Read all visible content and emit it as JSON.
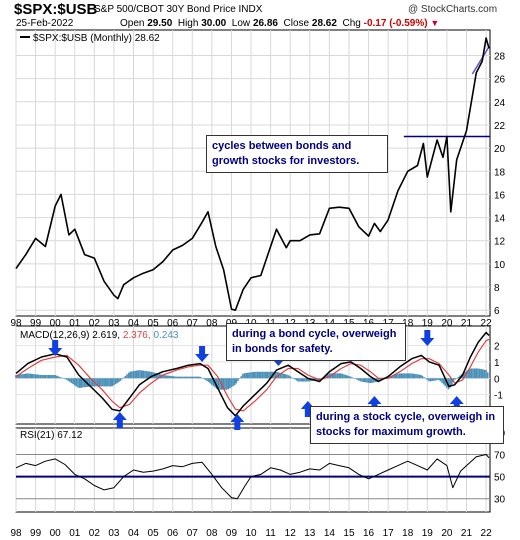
{
  "header": {
    "symbol": "$SPX:$USB",
    "description": "S&P 500/CBOT 30Y Bond Price INDX",
    "brand": "@ StockCharts.com",
    "date": "25-Feb-2022",
    "open_label": "Open",
    "open": "29.50",
    "high_label": "High",
    "high": "30.00",
    "low_label": "Low",
    "low": "26.86",
    "close_label": "Close",
    "close": "28.62",
    "chg_label": "Chg",
    "chg": "-0.17 (-0.59%)"
  },
  "annotations": {
    "top": "cycles between bonds and growth stocks for investors.",
    "bond_cycle": "during a bond cycle, overweigh in bonds for safety.",
    "stock_cycle": "during a stock cycle, overweigh in stocks for maximum growth."
  },
  "colors": {
    "price": "#000000",
    "macd": "#000000",
    "signal": "#e04040",
    "histogram": "#4a90b8",
    "arrow": "#1040e0",
    "annotation_text": "#000080",
    "level_line": "#000080",
    "trendline": "#6050d0"
  },
  "chart_data": [
    {
      "type": "line",
      "title": "$SPX:$USB (Monthly) 28.62",
      "x": [
        1998.0,
        1998.5,
        1999.0,
        1999.5,
        2000.0,
        2000.3,
        2000.7,
        2001.0,
        2001.5,
        2002.0,
        2002.5,
        2003.0,
        2003.2,
        2003.5,
        2004.0,
        2004.5,
        2005.0,
        2005.5,
        2006.0,
        2006.5,
        2007.0,
        2007.5,
        2007.8,
        2008.2,
        2008.6,
        2009.0,
        2009.2,
        2009.6,
        2010.0,
        2010.5,
        2011.0,
        2011.3,
        2011.8,
        2012.0,
        2012.5,
        2013.0,
        2013.5,
        2014.0,
        2014.5,
        2015.0,
        2015.5,
        2016.0,
        2016.3,
        2016.6,
        2017.0,
        2017.5,
        2018.0,
        2018.5,
        2018.8,
        2019.0,
        2019.5,
        2019.8,
        2020.0,
        2020.2,
        2020.5,
        2020.8,
        2021.0,
        2021.5,
        2021.8,
        2022.0,
        2022.15
      ],
      "y": [
        9.6,
        10.8,
        12.2,
        11.5,
        15.0,
        16.0,
        12.5,
        13.0,
        10.8,
        10.5,
        8.5,
        7.3,
        7.0,
        8.2,
        8.8,
        9.2,
        9.5,
        10.2,
        11.2,
        11.6,
        12.2,
        13.6,
        14.5,
        11.5,
        9.5,
        6.1,
        6.0,
        7.8,
        8.8,
        9.0,
        11.5,
        13.0,
        11.4,
        12.0,
        12.0,
        12.5,
        12.6,
        14.8,
        14.9,
        14.8,
        13.2,
        12.4,
        13.5,
        12.8,
        13.8,
        16.3,
        18.0,
        18.5,
        20.4,
        17.5,
        20.7,
        19.2,
        21.0,
        14.5,
        19.0,
        20.5,
        21.5,
        26.5,
        27.5,
        29.5,
        28.62
      ],
      "y_ticks": [
        6,
        8,
        10,
        12,
        14,
        16,
        18,
        20,
        22,
        24,
        26,
        28
      ],
      "ylim": [
        5.5,
        30.2
      ],
      "xlim": [
        1998.0,
        2022.2
      ],
      "horizontal_level": 21.0,
      "horizontal_level_from": 2017.8,
      "trendline": {
        "x": [
          2021.3,
          2022.2
        ],
        "y": [
          26.4,
          28.9
        ]
      }
    },
    {
      "type": "line",
      "title": "MACD(12,26,9)",
      "macd_value": "2.619",
      "signal_value": "2.376",
      "hist_value": "0.243",
      "series": [
        {
          "name": "MACD",
          "x": [
            1998.0,
            1998.6,
            1999.3,
            2000.0,
            2000.6,
            2001.2,
            2001.8,
            2002.4,
            2002.9,
            2003.3,
            2003.8,
            2004.3,
            2004.9,
            2005.5,
            2006.2,
            2006.8,
            2007.4,
            2007.8,
            2008.3,
            2008.8,
            2009.2,
            2009.6,
            2010.2,
            2010.8,
            2011.3,
            2011.9,
            2012.4,
            2012.9,
            2013.5,
            2014.0,
            2014.6,
            2015.1,
            2015.6,
            2016.1,
            2016.5,
            2017.0,
            2017.6,
            2018.2,
            2018.7,
            2019.1,
            2019.6,
            2020.1,
            2020.4,
            2020.8,
            2021.2,
            2021.6,
            2022.0,
            2022.15
          ],
          "y": [
            0.3,
            0.9,
            1.3,
            1.5,
            1.3,
            0.2,
            -0.5,
            -1.2,
            -1.9,
            -2.0,
            -1.2,
            -0.4,
            0.1,
            0.4,
            0.6,
            0.8,
            0.9,
            0.6,
            -0.6,
            -1.8,
            -2.3,
            -1.7,
            -1.0,
            -0.3,
            0.5,
            0.8,
            0.4,
            0.0,
            -0.2,
            0.4,
            0.9,
            1.0,
            0.6,
            0.1,
            -0.2,
            0.1,
            0.7,
            1.2,
            1.4,
            1.0,
            0.8,
            -0.5,
            -0.4,
            0.2,
            1.3,
            2.2,
            2.8,
            2.62
          ]
        },
        {
          "name": "Signal",
          "x": [
            1998.0,
            1998.6,
            1999.3,
            2000.0,
            2000.6,
            2001.2,
            2001.8,
            2002.4,
            2002.9,
            2003.3,
            2003.8,
            2004.3,
            2004.9,
            2005.5,
            2006.2,
            2006.8,
            2007.4,
            2007.8,
            2008.3,
            2008.8,
            2009.2,
            2009.6,
            2010.2,
            2010.8,
            2011.3,
            2011.9,
            2012.4,
            2012.9,
            2013.5,
            2014.0,
            2014.6,
            2015.1,
            2015.6,
            2016.1,
            2016.5,
            2017.0,
            2017.6,
            2018.2,
            2018.7,
            2019.1,
            2019.6,
            2020.1,
            2020.4,
            2020.8,
            2021.2,
            2021.6,
            2022.0,
            2022.15
          ],
          "y": [
            0.1,
            0.6,
            1.1,
            1.3,
            1.4,
            0.8,
            0.0,
            -0.7,
            -1.4,
            -1.8,
            -1.6,
            -0.9,
            -0.3,
            0.2,
            0.5,
            0.7,
            0.8,
            0.8,
            0.1,
            -1.1,
            -1.9,
            -2.0,
            -1.4,
            -0.7,
            0.1,
            0.6,
            0.6,
            0.2,
            -0.1,
            0.1,
            0.6,
            0.9,
            0.8,
            0.4,
            0.0,
            0.0,
            0.4,
            0.9,
            1.2,
            1.2,
            0.9,
            0.2,
            -0.3,
            -0.1,
            0.7,
            1.6,
            2.3,
            2.38
          ]
        }
      ],
      "y_ticks": [
        -1,
        0,
        1,
        2
      ],
      "ylim": [
        -2.8,
        3.2
      ]
    },
    {
      "type": "line",
      "title": "RSI(21)",
      "value": "67.12",
      "x": [
        1998.0,
        1998.5,
        1999.0,
        1999.5,
        2000.0,
        2000.5,
        2001.0,
        2001.5,
        2002.0,
        2002.5,
        2003.0,
        2003.5,
        2004.0,
        2004.5,
        2005.0,
        2005.5,
        2006.0,
        2006.5,
        2007.0,
        2007.5,
        2008.0,
        2008.5,
        2009.0,
        2009.3,
        2009.7,
        2010.0,
        2010.5,
        2011.0,
        2011.5,
        2012.0,
        2012.5,
        2013.0,
        2013.5,
        2014.0,
        2014.5,
        2015.0,
        2015.5,
        2016.0,
        2016.5,
        2017.0,
        2017.5,
        2018.0,
        2018.5,
        2019.0,
        2019.5,
        2020.0,
        2020.3,
        2020.7,
        2021.0,
        2021.5,
        2022.0,
        2022.15
      ],
      "y": [
        58,
        62,
        60,
        64,
        66,
        61,
        52,
        48,
        42,
        38,
        40,
        50,
        56,
        54,
        55,
        57,
        60,
        59,
        62,
        63,
        52,
        40,
        31,
        30,
        42,
        50,
        52,
        58,
        56,
        52,
        54,
        57,
        56,
        62,
        60,
        58,
        52,
        48,
        52,
        56,
        60,
        64,
        60,
        56,
        66,
        60,
        40,
        55,
        60,
        68,
        70,
        67
      ],
      "y_ticks": [
        30,
        50,
        70,
        90
      ],
      "ylim": [
        18,
        94
      ],
      "lines": [
        50,
        70,
        30
      ]
    }
  ],
  "x_axis": {
    "tick_labels": [
      "98",
      "99",
      "00",
      "01",
      "02",
      "03",
      "04",
      "05",
      "06",
      "07",
      "08",
      "09",
      "10",
      "11",
      "12",
      "13",
      "14",
      "15",
      "16",
      "17",
      "18",
      "19",
      "20",
      "21",
      "22"
    ]
  }
}
